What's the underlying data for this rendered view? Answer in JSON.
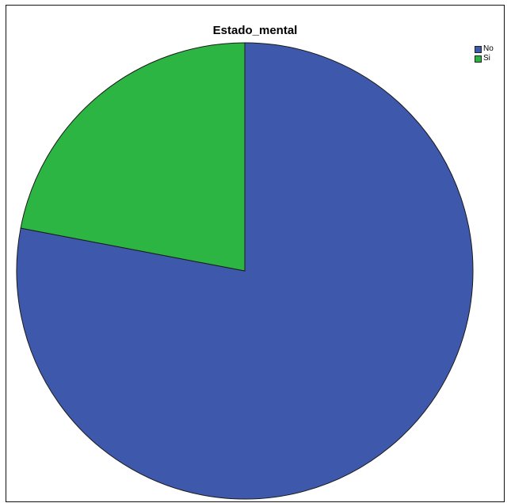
{
  "chart_data": {
    "type": "pie",
    "title": "Estado_mental",
    "categories": [
      "No",
      "Si"
    ],
    "values": [
      78,
      22
    ],
    "colors": [
      "#3e58ac",
      "#2db544"
    ],
    "legend_position": "top-right",
    "start_angle_deg": 0,
    "direction": "clockwise"
  }
}
